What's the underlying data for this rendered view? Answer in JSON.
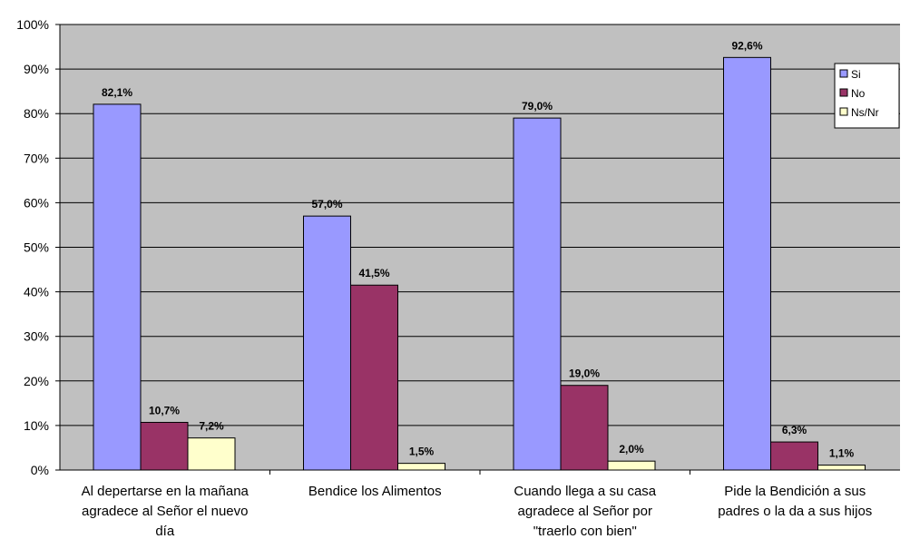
{
  "chart_data": {
    "type": "bar",
    "title": "",
    "xlabel": "",
    "ylabel": "",
    "ylim": [
      0,
      100
    ],
    "y_ticks": [
      "0%",
      "10%",
      "20%",
      "30%",
      "40%",
      "50%",
      "60%",
      "70%",
      "80%",
      "90%",
      "100%"
    ],
    "grid": true,
    "legend_position": "top-right",
    "categories": [
      [
        "Al depertarse en la mañana",
        "agradece al Señor el nuevo",
        "día"
      ],
      [
        "Bendice los Alimentos"
      ],
      [
        "Cuando llega a su casa",
        "agradece al Señor por",
        "\"traerlo con bien\""
      ],
      [
        "Pide la Bendición a sus",
        "padres o la da a sus hijos"
      ]
    ],
    "series": [
      {
        "name": "Si",
        "color": "#9999FF",
        "values": [
          82.1,
          57.0,
          79.0,
          92.6
        ],
        "labels": [
          "82,1%",
          "57,0%",
          "79,0%",
          "92,6%"
        ]
      },
      {
        "name": "No",
        "color": "#993366",
        "values": [
          10.7,
          41.5,
          19.0,
          6.3
        ],
        "labels": [
          "10,7%",
          "41,5%",
          "19,0%",
          "6,3%"
        ]
      },
      {
        "name": "Ns/Nr",
        "color": "#FFFFCC",
        "values": [
          7.2,
          1.5,
          2.0,
          1.1
        ],
        "labels": [
          "7,2%",
          "1,5%",
          "2,0%",
          "1,1%"
        ]
      }
    ],
    "colors": {
      "plot_background": "#C0C0C0",
      "gridline": "#000000"
    }
  }
}
